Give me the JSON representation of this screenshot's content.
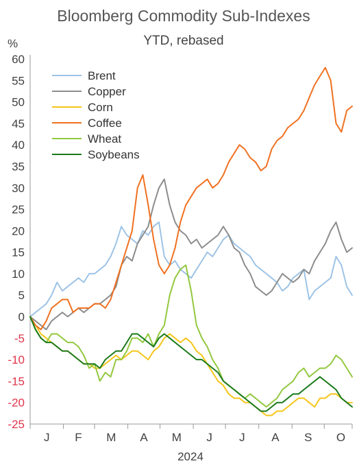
{
  "chart_data": {
    "type": "line",
    "title": "Bloomberg Commodity Sub-Indexes",
    "subtitle": "YTD, rebased",
    "ylabel": "%",
    "xlabel": "2024",
    "ylim": [
      -25,
      60
    ],
    "xlim": [
      0,
      300
    ],
    "y_ticks": [
      "60",
      "55",
      "50",
      "45",
      "40",
      "35",
      "30",
      "25",
      "20",
      "15",
      "10",
      "5",
      "0",
      "-5",
      "-10",
      "-15",
      "-20",
      "-25"
    ],
    "x_ticks": [
      {
        "label": "J",
        "x": 15.5
      },
      {
        "label": "F",
        "x": 45
      },
      {
        "label": "M",
        "x": 75.5
      },
      {
        "label": "A",
        "x": 106
      },
      {
        "label": "M",
        "x": 136.5
      },
      {
        "label": "J",
        "x": 167
      },
      {
        "label": "J",
        "x": 197.5
      },
      {
        "label": "A",
        "x": 228.5
      },
      {
        "label": "S",
        "x": 259
      },
      {
        "label": "O",
        "x": 289.5
      }
    ],
    "negative_tick_color": "#e0344a",
    "tick_color": "#404040",
    "legend_position": "top-left",
    "series": [
      {
        "name": "Brent",
        "color": "#9dc3e6",
        "x": [
          0,
          5,
          10,
          15,
          20,
          25,
          30,
          35,
          40,
          45,
          50,
          55,
          60,
          65,
          70,
          75,
          80,
          85,
          90,
          95,
          100,
          105,
          110,
          115,
          120,
          125,
          130,
          135,
          140,
          145,
          150,
          155,
          160,
          165,
          170,
          175,
          180,
          185,
          190,
          195,
          200,
          205,
          210,
          215,
          220,
          225,
          230,
          235,
          240,
          245,
          250,
          255,
          260,
          265,
          270,
          275,
          280,
          285,
          290,
          295,
          300
        ],
        "values": [
          0,
          1,
          2,
          3,
          5,
          8,
          6,
          7,
          8,
          9,
          8,
          10,
          10,
          11,
          12,
          14,
          17,
          21,
          19,
          18,
          17,
          20,
          19,
          21,
          22,
          14,
          12,
          13,
          11,
          10,
          9,
          11,
          13,
          15,
          14,
          16,
          18,
          19,
          17,
          16,
          15,
          14,
          12,
          11,
          10,
          9,
          8,
          6,
          7,
          9,
          10,
          11,
          4,
          6,
          7,
          8,
          9,
          14,
          12,
          7,
          5
        ]
      },
      {
        "name": "Copper",
        "color": "#8c8c8c",
        "x": [
          0,
          5,
          10,
          15,
          20,
          25,
          30,
          35,
          40,
          45,
          50,
          55,
          60,
          65,
          70,
          75,
          80,
          85,
          90,
          95,
          100,
          105,
          110,
          115,
          120,
          125,
          130,
          135,
          140,
          145,
          150,
          155,
          160,
          165,
          170,
          175,
          180,
          185,
          190,
          195,
          200,
          205,
          210,
          215,
          220,
          225,
          230,
          235,
          240,
          245,
          250,
          255,
          260,
          265,
          270,
          275,
          280,
          285,
          290,
          295,
          300
        ],
        "values": [
          0,
          -1,
          -2,
          -3,
          -1,
          0,
          1,
          0,
          1,
          2,
          1,
          2,
          3,
          3,
          4,
          5,
          7,
          12,
          14,
          13,
          17,
          19,
          21,
          26,
          30,
          32,
          26,
          22,
          20,
          19,
          17,
          18,
          16,
          17,
          18,
          19,
          21,
          19,
          16,
          15,
          12,
          10,
          7,
          6,
          5,
          6,
          8,
          10,
          9,
          8,
          9,
          11,
          10,
          13,
          15,
          17,
          20,
          22,
          18,
          15,
          16
        ]
      },
      {
        "name": "Corn",
        "color": "#f5c518",
        "x": [
          0,
          5,
          10,
          15,
          20,
          25,
          30,
          35,
          40,
          45,
          50,
          55,
          60,
          65,
          70,
          75,
          80,
          85,
          90,
          95,
          100,
          105,
          110,
          115,
          120,
          125,
          130,
          135,
          140,
          145,
          150,
          155,
          160,
          165,
          170,
          175,
          180,
          185,
          190,
          195,
          200,
          205,
          210,
          215,
          220,
          225,
          230,
          235,
          240,
          245,
          250,
          255,
          260,
          265,
          270,
          275,
          280,
          285,
          290,
          295,
          300
        ],
        "values": [
          0,
          -2,
          -4,
          -5,
          -6,
          -7,
          -8,
          -8,
          -9,
          -10,
          -11,
          -11,
          -12,
          -12,
          -11,
          -10,
          -9,
          -10,
          -9,
          -8,
          -8,
          -9,
          -10,
          -8,
          -7,
          -5,
          -4,
          -5,
          -6,
          -5,
          -6,
          -8,
          -9,
          -11,
          -13,
          -15,
          -16,
          -18,
          -19,
          -19,
          -20,
          -20,
          -21,
          -22,
          -23,
          -23,
          -22,
          -22,
          -21,
          -20,
          -19,
          -19,
          -20,
          -21,
          -19,
          -19,
          -18,
          -18,
          -19,
          -20,
          -20
        ]
      },
      {
        "name": "Coffee",
        "color": "#f07020",
        "x": [
          0,
          5,
          10,
          15,
          20,
          25,
          30,
          35,
          40,
          45,
          50,
          55,
          60,
          65,
          70,
          75,
          80,
          85,
          90,
          95,
          100,
          105,
          110,
          115,
          120,
          125,
          130,
          135,
          140,
          145,
          150,
          155,
          160,
          165,
          170,
          175,
          180,
          185,
          190,
          195,
          200,
          205,
          210,
          215,
          220,
          225,
          230,
          235,
          240,
          245,
          250,
          255,
          260,
          265,
          270,
          275,
          280,
          285,
          290,
          295,
          300
        ],
        "values": [
          0,
          -2,
          -3,
          -1,
          2,
          3,
          4,
          4,
          1,
          2,
          2,
          2,
          3,
          3,
          2,
          4,
          8,
          12,
          16,
          20,
          30,
          33,
          26,
          18,
          12,
          10,
          12,
          16,
          22,
          26,
          28,
          30,
          31,
          32,
          30,
          31,
          33,
          36,
          38,
          40,
          39,
          37,
          36,
          34,
          35,
          39,
          41,
          42,
          44,
          45,
          46,
          48,
          51,
          54,
          56,
          58,
          55,
          45,
          43,
          48,
          49
        ]
      },
      {
        "name": "Wheat",
        "color": "#92c83e",
        "x": [
          0,
          5,
          10,
          15,
          20,
          25,
          30,
          35,
          40,
          45,
          50,
          55,
          60,
          65,
          70,
          75,
          80,
          85,
          90,
          95,
          100,
          105,
          110,
          115,
          120,
          125,
          130,
          135,
          140,
          145,
          150,
          155,
          160,
          165,
          170,
          175,
          180,
          185,
          190,
          195,
          200,
          205,
          210,
          215,
          220,
          225,
          230,
          235,
          240,
          245,
          250,
          255,
          260,
          265,
          270,
          275,
          280,
          285,
          290,
          295,
          300
        ],
        "values": [
          0,
          -3,
          -5,
          -6,
          -4,
          -4,
          -5,
          -6,
          -6,
          -7,
          -9,
          -12,
          -11,
          -15,
          -13,
          -14,
          -10,
          -10,
          -8,
          -5,
          -5,
          -6,
          -4,
          -7,
          -4,
          -2,
          5,
          9,
          11,
          12,
          6,
          -2,
          -5,
          -7,
          -10,
          -12,
          -15,
          -16,
          -17,
          -18,
          -19,
          -18,
          -19,
          -20,
          -21,
          -20,
          -19,
          -17,
          -16,
          -15,
          -13,
          -12,
          -14,
          -13,
          -12,
          -12,
          -11,
          -9,
          -10,
          -12,
          -14
        ]
      },
      {
        "name": "Soybeans",
        "color": "#1a7a1a",
        "x": [
          0,
          5,
          10,
          15,
          20,
          25,
          30,
          35,
          40,
          45,
          50,
          55,
          60,
          65,
          70,
          75,
          80,
          85,
          90,
          95,
          100,
          105,
          110,
          115,
          120,
          125,
          130,
          135,
          140,
          145,
          150,
          155,
          160,
          165,
          170,
          175,
          180,
          185,
          190,
          195,
          200,
          205,
          210,
          215,
          220,
          225,
          230,
          235,
          240,
          245,
          250,
          255,
          260,
          265,
          270,
          275,
          280,
          285,
          290,
          295,
          300
        ],
        "values": [
          0,
          -3,
          -5,
          -6,
          -6,
          -7,
          -8,
          -8,
          -9,
          -10,
          -11,
          -11,
          -11,
          -12,
          -10,
          -9,
          -8,
          -8,
          -6,
          -4,
          -4,
          -5,
          -6,
          -7,
          -5,
          -4,
          -5,
          -6,
          -7,
          -8,
          -9,
          -10,
          -10,
          -11,
          -12,
          -13,
          -15,
          -16,
          -17,
          -18,
          -19,
          -20,
          -21,
          -22,
          -22,
          -21,
          -20,
          -20,
          -19,
          -18,
          -18,
          -17,
          -16,
          -15,
          -14,
          -15,
          -16,
          -17,
          -19,
          -20,
          -21
        ]
      }
    ]
  }
}
